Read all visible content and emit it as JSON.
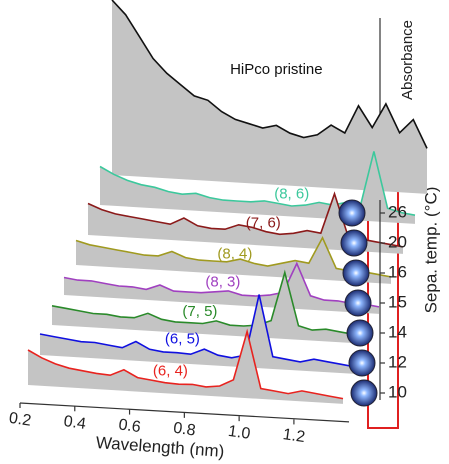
{
  "chart_data": {
    "type": "waterfall",
    "x": [
      0.2,
      0.25,
      0.3,
      0.35,
      0.4,
      0.45,
      0.5,
      0.55,
      0.6,
      0.65,
      0.7,
      0.75,
      0.8,
      0.85,
      0.9,
      0.95,
      1.0,
      1.05,
      1.1,
      1.15,
      1.2,
      1.25,
      1.3,
      1.35
    ],
    "xlim": [
      0.2,
      1.35
    ],
    "xticks": [
      0.2,
      0.4,
      0.6,
      0.8,
      {
        "value": 1.0,
        "label": "1.0"
      },
      1.2
    ],
    "xlabel": "Wavelength (nm)",
    "ylabel": "Absorbance",
    "zlabel": "Sepa. temp. (°C)",
    "layer_labels": [
      10,
      12,
      14,
      15,
      16,
      20,
      26
    ],
    "series": [
      {
        "name": "(6, 4)",
        "color": "#e8231f",
        "values": [
          1.0,
          0.8,
          0.65,
          0.55,
          0.5,
          0.45,
          0.42,
          0.6,
          0.4,
          0.35,
          0.3,
          0.28,
          0.3,
          0.25,
          0.3,
          0.5,
          1.9,
          0.3,
          0.25,
          0.2,
          0.3,
          0.25,
          0.2,
          0.15
        ]
      },
      {
        "name": "(6, 5)",
        "color": "#1010e0",
        "values": [
          0.6,
          0.55,
          0.5,
          0.45,
          0.45,
          0.4,
          0.35,
          0.55,
          0.35,
          0.3,
          0.3,
          0.28,
          0.45,
          0.3,
          0.25,
          0.35,
          2.1,
          0.35,
          0.3,
          0.25,
          0.35,
          0.3,
          0.25,
          0.2
        ]
      },
      {
        "name": "(7, 5)",
        "color": "#2a8a2a",
        "values": [
          0.55,
          0.5,
          0.45,
          0.4,
          0.4,
          0.35,
          0.35,
          0.5,
          0.35,
          0.3,
          0.3,
          0.3,
          0.4,
          0.3,
          0.3,
          0.35,
          0.5,
          1.9,
          0.4,
          0.3,
          0.35,
          0.3,
          0.25,
          0.2
        ]
      },
      {
        "name": "(8, 3)",
        "color": "#a040c0",
        "values": [
          0.5,
          0.45,
          0.45,
          0.4,
          0.35,
          0.35,
          0.3,
          0.45,
          0.3,
          0.3,
          0.3,
          0.35,
          0.4,
          0.3,
          0.3,
          0.35,
          0.45,
          1.3,
          0.4,
          0.3,
          0.3,
          0.25,
          0.25,
          0.2
        ]
      },
      {
        "name": "(8, 4)",
        "color": "#a09a20",
        "values": [
          0.7,
          0.6,
          0.55,
          0.5,
          0.45,
          0.4,
          0.4,
          0.55,
          0.4,
          0.35,
          0.35,
          0.35,
          0.45,
          0.35,
          0.3,
          0.4,
          0.5,
          0.45,
          1.2,
          0.35,
          0.3,
          0.3,
          0.25,
          0.2
        ]
      },
      {
        "name": "(7, 6)",
        "color": "#8b1a1a",
        "values": [
          0.9,
          0.75,
          0.65,
          0.6,
          0.55,
          0.5,
          0.45,
          0.65,
          0.45,
          0.4,
          0.4,
          0.55,
          0.5,
          0.4,
          0.35,
          0.4,
          0.5,
          0.45,
          1.6,
          0.4,
          0.35,
          0.3,
          0.25,
          0.2
        ]
      },
      {
        "name": "(8, 6)",
        "color": "#3cc89c",
        "values": [
          1.1,
          0.9,
          0.75,
          0.65,
          0.6,
          0.5,
          0.45,
          0.5,
          0.4,
          0.35,
          0.35,
          0.35,
          0.4,
          0.35,
          0.3,
          0.35,
          0.45,
          0.4,
          0.5,
          0.4,
          2.0,
          0.4,
          0.3,
          0.25
        ]
      },
      {
        "name": "HiPco pristine",
        "color": "#111111",
        "values": [
          5.0,
          4.6,
          4.0,
          3.4,
          3.0,
          2.7,
          2.4,
          2.3,
          2.0,
          1.8,
          1.7,
          1.6,
          1.7,
          1.5,
          1.4,
          1.5,
          1.8,
          1.6,
          2.4,
          1.8,
          2.5,
          1.7,
          2.1,
          1.3
        ]
      }
    ]
  }
}
